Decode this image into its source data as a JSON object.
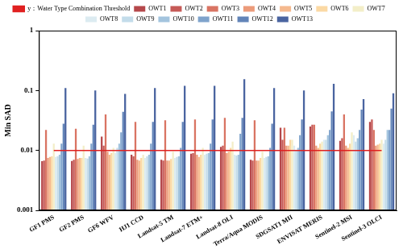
{
  "chart_data": {
    "type": "bar",
    "y_label": "Min SAD",
    "categories": [
      "GF1 PMS",
      "GF2 PMS",
      "GF6 WFV",
      "HJ1 CCD",
      "Landsat-5 TM",
      "Landsat-7 ETM+",
      "Landsat-8 OLI",
      "Terra/Aqua MODIS",
      "SDGSAT1 MII",
      "ENVISAT MERIS",
      "Sentinel-2 MSI",
      "Sentinel-3 OLCI"
    ],
    "series": [
      {
        "name": "OWT1",
        "color": "#b5484b",
        "values": [
          0.0066,
          0.0067,
          0.017,
          0.0085,
          0.007,
          0.0088,
          0.0115,
          0.007,
          0.024,
          0.025,
          0.0145,
          0.03
        ]
      },
      {
        "name": "OWT2",
        "color": "#c65a57",
        "values": [
          0.0068,
          0.007,
          0.012,
          0.008,
          0.0068,
          0.009,
          0.012,
          0.0068,
          0.015,
          0.027,
          0.016,
          0.033
        ]
      },
      {
        "name": "OWT3",
        "color": "#d97463",
        "values": [
          0.022,
          0.023,
          0.04,
          0.03,
          0.032,
          0.033,
          0.035,
          0.032,
          0.024,
          0.027,
          0.04,
          0.022
        ]
      },
      {
        "name": "OWT4",
        "color": "#ec9b7a",
        "values": [
          0.0075,
          0.0072,
          0.0095,
          0.007,
          0.0068,
          0.0085,
          0.009,
          0.0068,
          0.012,
          0.012,
          0.012,
          0.012
        ]
      },
      {
        "name": "OWT5",
        "color": "#f5b98e",
        "values": [
          0.0078,
          0.0075,
          0.0085,
          0.0068,
          0.0068,
          0.0078,
          0.0095,
          0.0068,
          0.012,
          0.011,
          0.011,
          0.0125
        ]
      },
      {
        "name": "OWT6",
        "color": "#fbd9a4",
        "values": [
          0.008,
          0.0075,
          0.009,
          0.0075,
          0.0072,
          0.0085,
          0.011,
          0.0075,
          0.015,
          0.013,
          0.013,
          0.013
        ]
      },
      {
        "name": "OWT7",
        "color": "#f3eec8",
        "values": [
          0.013,
          0.012,
          0.011,
          0.0085,
          0.0095,
          0.011,
          0.014,
          0.0095,
          0.015,
          0.014,
          0.02,
          0.015
        ]
      },
      {
        "name": "OWT8",
        "color": "#dcebf1",
        "values": [
          0.0078,
          0.0075,
          0.009,
          0.0075,
          0.0075,
          0.0085,
          0.0085,
          0.0075,
          0.012,
          0.015,
          0.018,
          0.013
        ]
      },
      {
        "name": "OWT9",
        "color": "#c3dcea",
        "values": [
          0.008,
          0.0073,
          0.011,
          0.008,
          0.0078,
          0.0088,
          0.0082,
          0.0078,
          0.01,
          0.015,
          0.014,
          0.015
        ]
      },
      {
        "name": "OWT10",
        "color": "#a3c4de",
        "values": [
          0.0085,
          0.008,
          0.013,
          0.0085,
          0.008,
          0.009,
          0.0085,
          0.008,
          0.011,
          0.018,
          0.016,
          0.022
        ]
      },
      {
        "name": "OWT11",
        "color": "#7fa3cc",
        "values": [
          0.013,
          0.013,
          0.02,
          0.013,
          0.011,
          0.013,
          0.019,
          0.011,
          0.018,
          0.022,
          0.022,
          0.022
        ]
      },
      {
        "name": "OWT12",
        "color": "#6284b8",
        "values": [
          0.028,
          0.027,
          0.044,
          0.03,
          0.03,
          0.033,
          0.035,
          0.028,
          0.033,
          0.045,
          0.048,
          0.05
        ]
      },
      {
        "name": "OWT13",
        "color": "#4a64a0",
        "values": [
          0.11,
          0.1,
          0.088,
          0.11,
          0.12,
          0.12,
          0.155,
          0.11,
          0.1,
          0.13,
          0.072,
          0.09
        ]
      },
      {
        "name": "y：Water Type Combination Threshold",
        "color": "#e02020",
        "type": "line",
        "line_style": "solid",
        "values": [
          0.01,
          0.01,
          0.01,
          0.01,
          0.01,
          0.01,
          0.01,
          0.01,
          0.01,
          0.01,
          0.01,
          0.01
        ]
      }
    ],
    "log": "y",
    "ylim": [
      0.001,
      1
    ],
    "yticks": [
      0.001,
      0.01,
      0.1,
      1
    ],
    "grid": false,
    "legend": "top"
  }
}
